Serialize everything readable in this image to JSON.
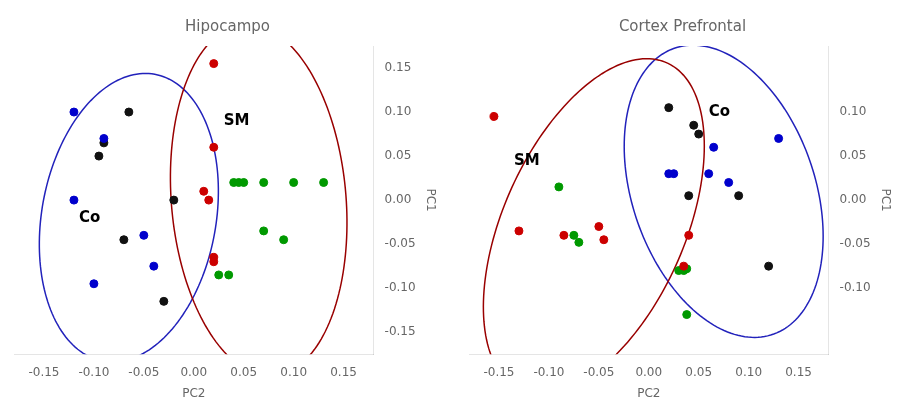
{
  "chart_data": [
    {
      "type": "scatter",
      "title": "Hipocampo",
      "xlabel": "PC2",
      "ylabel": "PC1",
      "xlim": [
        -0.18,
        0.18
      ],
      "ylim": [
        -0.175,
        0.175
      ],
      "xticks": [
        -0.15,
        {
          "value": -0.1,
          "label": "-0.10"
        },
        -0.05,
        {
          "value": 0,
          "label": "0.00"
        },
        0.05,
        {
          "value": 0.1,
          "label": "0.10"
        },
        0.15
      ],
      "yticks": [
        -0.15,
        {
          "value": -0.1,
          "label": "-0.10"
        },
        -0.05,
        {
          "value": 0,
          "label": "0.00"
        },
        0.05,
        {
          "value": 0.1,
          "label": "0.10"
        },
        0.15
      ],
      "grid": false,
      "series": [
        {
          "color": "#0000cc",
          "x": [
            -0.12,
            -0.09,
            -0.12,
            -0.05,
            -0.04,
            -0.1
          ],
          "values": [
            0.1,
            0.07,
            0.0,
            -0.04,
            -0.075,
            -0.095
          ]
        },
        {
          "color": "#111111",
          "x": [
            -0.065,
            -0.09,
            -0.095,
            -0.02,
            -0.07,
            -0.03
          ],
          "values": [
            0.1,
            0.065,
            0.05,
            0.0,
            -0.045,
            -0.115
          ]
        },
        {
          "color": "#cc0000",
          "x": [
            0.02,
            0.02,
            0.01,
            0.015,
            0.02,
            0.02
          ],
          "values": [
            0.155,
            0.06,
            0.01,
            0.0,
            -0.065,
            -0.07
          ]
        },
        {
          "color": "#009900",
          "x": [
            0.04,
            0.045,
            0.05,
            0.07,
            0.1,
            0.13,
            0.07,
            0.09,
            0.025,
            0.035
          ],
          "values": [
            0.02,
            0.02,
            0.02,
            0.02,
            0.02,
            0.02,
            -0.035,
            -0.045,
            -0.085,
            -0.085
          ]
        }
      ],
      "ellipses": [
        {
          "color": "#2222bb",
          "cx": -0.065,
          "cy": -0.02,
          "width": 0.175,
          "height": 0.33,
          "angle": -8
        },
        {
          "color": "#990000",
          "cx": 0.065,
          "cy": 0.0,
          "width": 0.175,
          "height": 0.4,
          "angle": 4
        }
      ],
      "annotations": [
        {
          "text": "Co",
          "x": -0.115,
          "y": -0.025
        },
        {
          "text": "SM",
          "x": 0.03,
          "y": 0.085
        }
      ]
    },
    {
      "type": "scatter",
      "title": "Cortex Prefrontal",
      "xlabel": "PC2",
      "ylabel": "PC1",
      "xlim": [
        -0.18,
        0.18
      ],
      "ylim": [
        -0.175,
        0.175
      ],
      "xticks": [
        -0.15,
        {
          "value": -0.1,
          "label": "-0.10"
        },
        -0.05,
        {
          "value": 0,
          "label": "0.00"
        },
        0.05,
        {
          "value": 0.1,
          "label": "0.10"
        },
        0.15
      ],
      "yticks": [
        {
          "value": -0.1,
          "label": "-0.10"
        },
        -0.05,
        {
          "value": 0,
          "label": "0.00"
        },
        0.05,
        {
          "value": 0.1,
          "label": "0.10"
        }
      ],
      "grid": false,
      "series": [
        {
          "color": "#0000cc",
          "x": [
            0.02,
            0.025,
            0.065,
            0.06,
            0.08,
            0.13
          ],
          "values": [
            0.03,
            0.03,
            0.06,
            0.03,
            0.02,
            0.07
          ]
        },
        {
          "color": "#111111",
          "x": [
            0.02,
            0.045,
            0.05,
            0.04,
            0.09,
            0.12
          ],
          "values": [
            0.105,
            0.085,
            0.075,
            0.005,
            0.005,
            -0.075
          ]
        },
        {
          "color": "#cc0000",
          "x": [
            -0.155,
            -0.13,
            -0.085,
            -0.05,
            -0.045,
            0.04,
            0.035
          ],
          "values": [
            0.095,
            -0.035,
            -0.04,
            -0.03,
            -0.045,
            -0.04,
            -0.075
          ]
        },
        {
          "color": "#009900",
          "x": [
            -0.09,
            -0.075,
            -0.07,
            0.03,
            0.035,
            0.038,
            0.038
          ],
          "values": [
            0.015,
            -0.04,
            -0.048,
            -0.08,
            -0.08,
            -0.13,
            -0.078
          ]
        }
      ],
      "ellipses": [
        {
          "color": "#2222bb",
          "cx": 0.075,
          "cy": 0.01,
          "width": 0.185,
          "height": 0.34,
          "angle": 15
        },
        {
          "color": "#990000",
          "cx": -0.055,
          "cy": -0.03,
          "width": 0.185,
          "height": 0.4,
          "angle": -20
        }
      ],
      "annotations": [
        {
          "text": "Co",
          "x": 0.06,
          "y": 0.095
        },
        {
          "text": "SM",
          "x": -0.135,
          "y": 0.04
        }
      ]
    }
  ]
}
